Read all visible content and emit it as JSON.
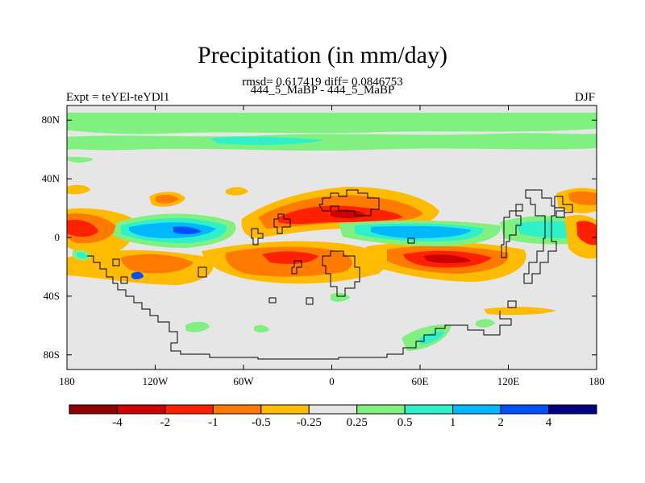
{
  "title": "Precipitation (in mm/day)",
  "stats": "rmsd= 0.617419 diff= 0.0846753",
  "subtitle": "444_5_MaBP - 444_5_MaBP",
  "left_label": "Expt = teYEl-teYDl1",
  "right_label": "DJF",
  "map": {
    "projection": "cylindrical-equidistant",
    "lon_range": [
      -180,
      180
    ],
    "lat_range": [
      -90,
      90
    ],
    "y_ticks": [
      {
        "value": 80,
        "label": "80N"
      },
      {
        "value": 40,
        "label": "40N"
      },
      {
        "value": 0,
        "label": "0"
      },
      {
        "value": -40,
        "label": "40S"
      },
      {
        "value": -80,
        "label": "80S"
      }
    ],
    "x_ticks": [
      {
        "value": -180,
        "label": "180"
      },
      {
        "value": -120,
        "label": "120W"
      },
      {
        "value": -60,
        "label": "60W"
      },
      {
        "value": 0,
        "label": "0"
      },
      {
        "value": 60,
        "label": "60E"
      },
      {
        "value": 120,
        "label": "120E"
      },
      {
        "value": 180,
        "label": "180"
      }
    ],
    "background_color": "#e6e6e6",
    "coastline_color": "#000000"
  },
  "colorbar": {
    "colors": [
      "#8b0000",
      "#cc0000",
      "#ff2000",
      "#ff7a00",
      "#ffbb00",
      "#e6e6e6",
      "#80f080",
      "#30f0c8",
      "#00b8ff",
      "#0050ff",
      "#000080"
    ],
    "labels": [
      "-4",
      "-2",
      "-1",
      "-0.5",
      "-0.25",
      "0.25",
      "0.5",
      "1",
      "2",
      "4"
    ]
  },
  "chart_data": {
    "type": "heatmap",
    "field": "precipitation difference",
    "units": "mm/day",
    "season": "DJF",
    "rmsd": 0.617419,
    "diff": 0.0846753,
    "levels": [
      -4,
      -2,
      -1,
      -0.5,
      -0.25,
      0.25,
      0.5,
      1,
      2,
      4
    ],
    "xlim": [
      -180,
      180
    ],
    "ylim": [
      -90,
      90
    ],
    "features": [
      {
        "lon": [
          -180,
          180
        ],
        "lat": [
          62,
          70
        ],
        "value": 0.5
      },
      {
        "lon": [
          -180,
          180
        ],
        "lat": [
          78,
          86
        ],
        "value": 0.5
      },
      {
        "lon": [
          -130,
          -65
        ],
        "lat": [
          8,
          14
        ],
        "value": 0.75
      },
      {
        "lon": [
          15,
          105
        ],
        "lat": [
          -2,
          6
        ],
        "value": 0.75
      },
      {
        "lon": [
          -175,
          -150
        ],
        "lat": [
          -2,
          14
        ],
        "value": -1.5
      },
      {
        "lon": [
          -65,
          -10
        ],
        "lat": [
          -30,
          -16
        ],
        "value": -1.5
      },
      {
        "lon": [
          -30,
          55
        ],
        "lat": [
          5,
          15
        ],
        "value": -1.5
      },
      {
        "lon": [
          40,
          115
        ],
        "lat": [
          -22,
          -12
        ],
        "value": -3
      },
      {
        "lon": [
          -105,
          -85
        ],
        "lat": [
          24,
          32
        ],
        "value": -0.5
      }
    ]
  }
}
